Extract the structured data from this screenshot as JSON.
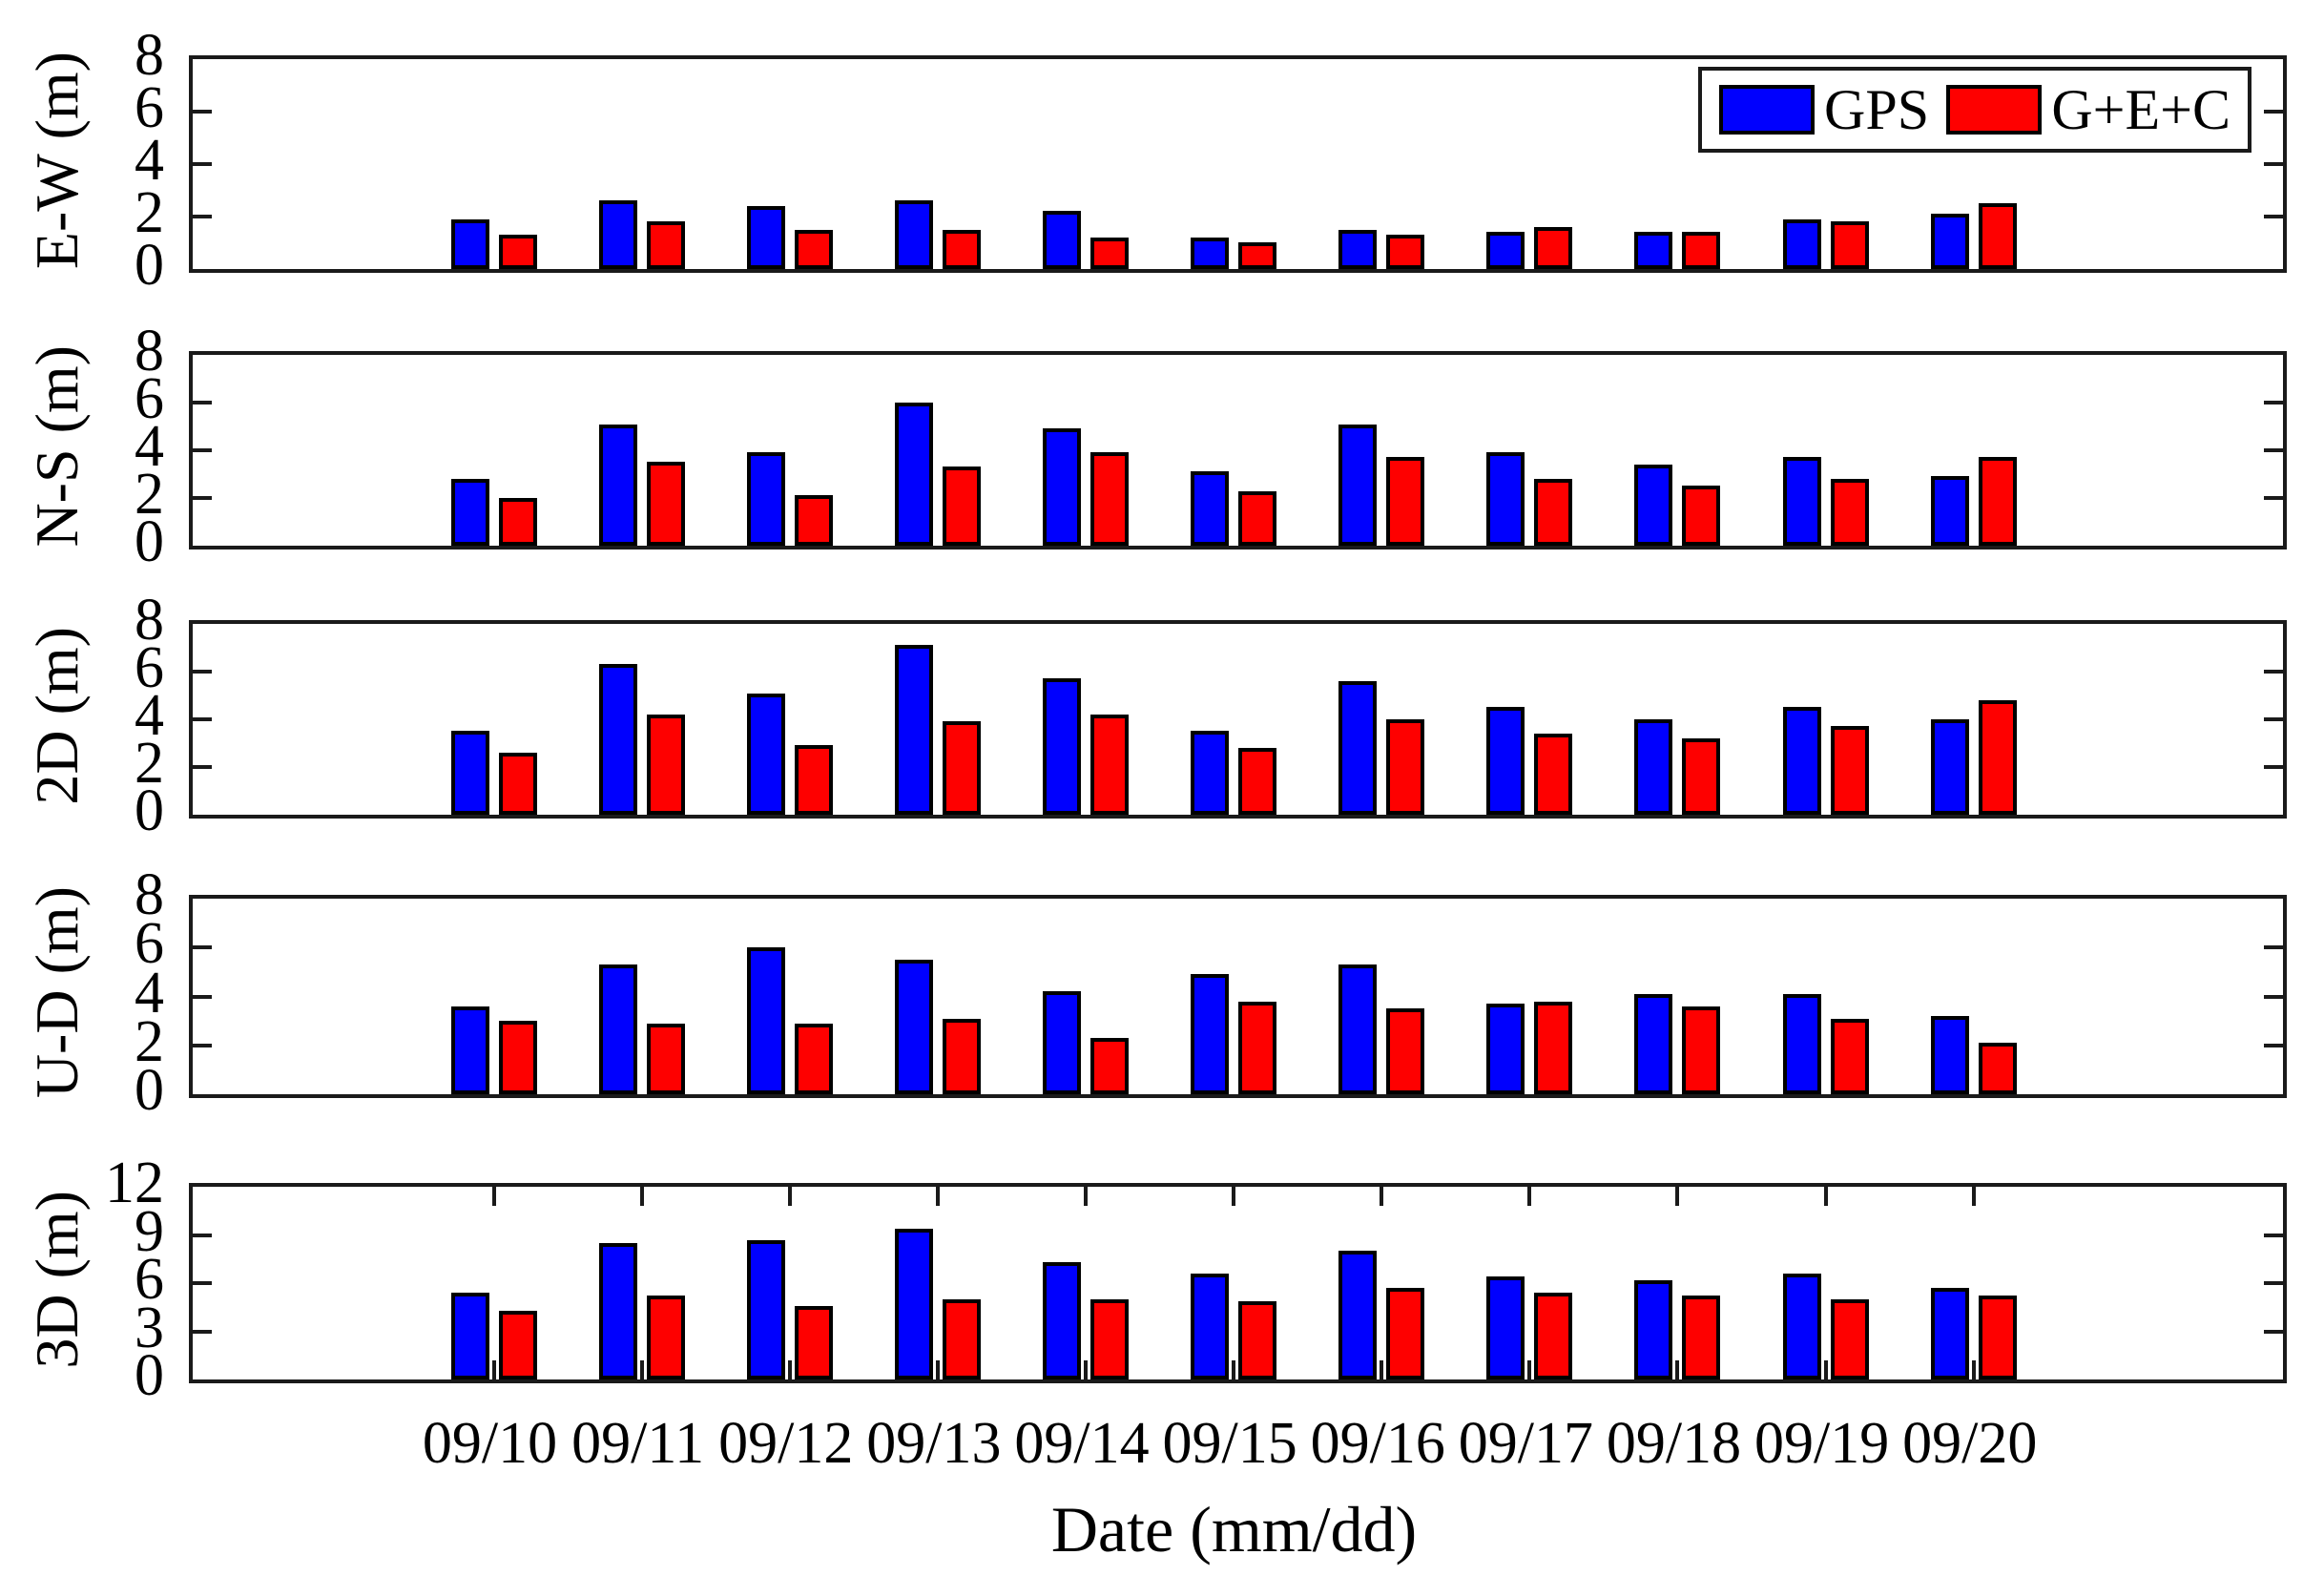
{
  "chart_data": {
    "type": "bar",
    "title": "",
    "xlabel": "Date (mm/dd)",
    "categories": [
      "09/10",
      "09/11",
      "09/12",
      "09/13",
      "09/14",
      "09/15",
      "09/16",
      "09/17",
      "09/18",
      "09/19",
      "09/20"
    ],
    "series_names": [
      "GPS",
      "G+E+C"
    ],
    "series_colors": [
      "#0000fe",
      "#fe0000"
    ],
    "legend_position": "top-right-of-first-subplot",
    "grid": "off",
    "subplots": [
      {
        "ylabel": "E-W (m)",
        "ylim": [
          0,
          8
        ],
        "yticks": [
          0,
          2,
          4,
          6,
          8
        ],
        "x_date_ticks": false,
        "series": [
          {
            "name": "GPS",
            "values": [
              1.9,
              2.6,
              2.4,
              2.6,
              2.2,
              1.2,
              1.5,
              1.4,
              1.4,
              1.9,
              2.1
            ]
          },
          {
            "name": "G+E+C",
            "values": [
              1.3,
              1.8,
              1.5,
              1.5,
              1.2,
              1.0,
              1.3,
              1.6,
              1.4,
              1.8,
              2.5
            ]
          }
        ]
      },
      {
        "ylabel": "N-S (m)",
        "ylim": [
          0,
          8
        ],
        "yticks": [
          0,
          2,
          4,
          6,
          8
        ],
        "x_date_ticks": false,
        "series": [
          {
            "name": "GPS",
            "values": [
              2.8,
              5.1,
              3.9,
              6.0,
              4.9,
              3.1,
              5.1,
              3.9,
              3.4,
              3.7,
              2.9
            ]
          },
          {
            "name": "G+E+C",
            "values": [
              2.0,
              3.5,
              2.1,
              3.3,
              3.9,
              2.3,
              3.7,
              2.8,
              2.5,
              2.8,
              3.7
            ]
          }
        ]
      },
      {
        "ylabel": "2D (m)",
        "ylim": [
          0,
          8
        ],
        "yticks": [
          0,
          2,
          4,
          6,
          8
        ],
        "x_date_ticks": false,
        "series": [
          {
            "name": "GPS",
            "values": [
              3.5,
              6.3,
              5.1,
              7.1,
              5.7,
              3.5,
              5.6,
              4.5,
              4.0,
              4.5,
              4.0
            ]
          },
          {
            "name": "G+E+C",
            "values": [
              2.6,
              4.2,
              2.9,
              3.9,
              4.2,
              2.8,
              4.0,
              3.4,
              3.2,
              3.7,
              4.8
            ]
          }
        ]
      },
      {
        "ylabel": "U-D (m)",
        "ylim": [
          0,
          8
        ],
        "yticks": [
          0,
          2,
          4,
          6,
          8
        ],
        "x_date_ticks": false,
        "series": [
          {
            "name": "GPS",
            "values": [
              3.6,
              5.3,
              6.0,
              5.5,
              4.2,
              4.9,
              5.3,
              3.7,
              4.1,
              4.1,
              3.2
            ]
          },
          {
            "name": "G+E+C",
            "values": [
              3.0,
              2.9,
              2.9,
              3.1,
              2.3,
              3.8,
              3.5,
              3.8,
              3.6,
              3.1,
              2.1
            ]
          }
        ]
      },
      {
        "ylabel": "3D (m)",
        "ylim": [
          0,
          12
        ],
        "yticks": [
          0,
          3,
          6,
          9,
          12
        ],
        "x_date_ticks": true,
        "series": [
          {
            "name": "GPS",
            "values": [
              5.4,
              8.5,
              8.7,
              9.4,
              7.3,
              6.6,
              8.0,
              6.4,
              6.2,
              6.6,
              5.7
            ]
          },
          {
            "name": "G+E+C",
            "values": [
              4.3,
              5.2,
              4.6,
              5.0,
              5.0,
              4.9,
              5.7,
              5.4,
              5.2,
              5.0,
              5.2
            ]
          }
        ]
      }
    ]
  }
}
